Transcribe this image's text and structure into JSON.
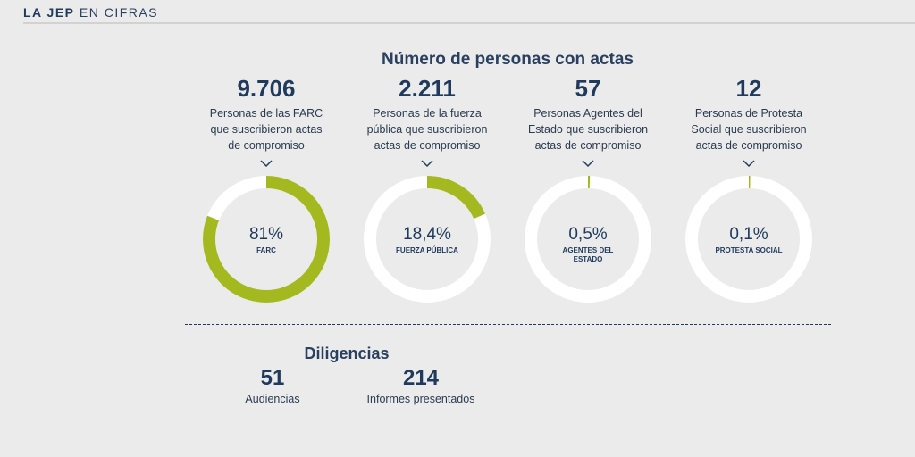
{
  "header": {
    "bold": "LA JEP",
    "rest": "EN CIFRAS"
  },
  "section_title": "Número de personas con actas",
  "colors": {
    "accent": "#a4b920",
    "ring": "#ffffff",
    "text": "#1f3a5c",
    "background": "#ebebeb"
  },
  "cards": [
    {
      "number": "9.706",
      "description": "Personas de las FARC que suscribieron actas de compromiso",
      "percent_label": "81%",
      "percent": 81,
      "category": "FARC"
    },
    {
      "number": "2.211",
      "description": "Personas de la fuerza pública que suscribieron actas de compromiso",
      "percent_label": "18,4%",
      "percent": 18.4,
      "category": "FUERZA PÚBLICA"
    },
    {
      "number": "57",
      "description": "Personas Agentes del Estado que suscribieron actas de compromiso",
      "percent_label": "0,5%",
      "percent": 0.5,
      "category": "AGENTES DEL ESTADO"
    },
    {
      "number": "12",
      "description": "Personas de Protesta Social que suscribieron actas de compromiso",
      "percent_label": "0,1%",
      "percent": 0.1,
      "category": "PROTESTA SOCIAL"
    }
  ],
  "diligencias": {
    "title": "Diligencias",
    "stats": [
      {
        "number": "51",
        "label": "Audiencias"
      },
      {
        "number": "214",
        "label": "Informes presentados"
      }
    ]
  }
}
